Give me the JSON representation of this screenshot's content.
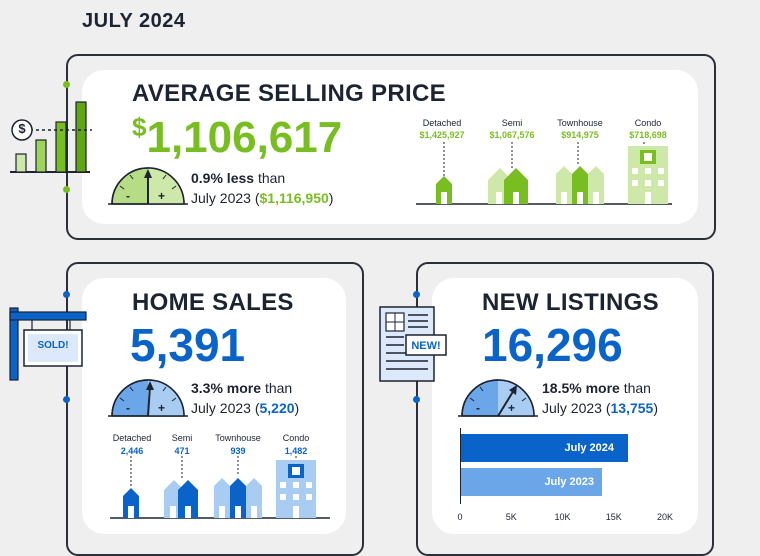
{
  "header": {
    "month": "JULY 2024"
  },
  "price": {
    "title": "AVERAGE SELLING PRICE",
    "currency": "$",
    "amount": "1,106,617",
    "change_pct": "0.9% less",
    "change_word": "than",
    "prev_label": "July 2023 (",
    "prev_currency": "$",
    "prev_value": "1,116,950",
    "prev_close": ")",
    "accent": "#78be20",
    "types": [
      {
        "label": "Detached",
        "value": "$1,425,927"
      },
      {
        "label": "Semi",
        "value": "$1,067,576"
      },
      {
        "label": "Townhouse",
        "value": "$914,975"
      },
      {
        "label": "Condo",
        "value": "$718,698"
      }
    ],
    "sign_symbol": "$"
  },
  "sales": {
    "title": "HOME SALES",
    "amount": "5,391",
    "change_pct": "3.3% more",
    "change_word": "than",
    "prev_label": "July 2023 (",
    "prev_value": "5,220",
    "prev_close": ")",
    "accent": "#0a63c9",
    "sign_text": "SOLD!",
    "types": [
      {
        "label": "Detached",
        "value": "2,446"
      },
      {
        "label": "Semi",
        "value": "471"
      },
      {
        "label": "Townhouse",
        "value": "939"
      },
      {
        "label": "Condo",
        "value": "1,482"
      }
    ]
  },
  "listings": {
    "title": "NEW LISTINGS",
    "amount": "16,296",
    "change_pct": "18.5% more",
    "change_word": "than",
    "prev_label": "July 2023 (",
    "prev_value": "13,755",
    "prev_close": ")",
    "accent": "#0a63c9",
    "badge_text": "NEW!"
  },
  "gauge": {
    "minus": "-",
    "plus": "+"
  },
  "chart_data": {
    "type": "bar",
    "orientation": "horizontal",
    "categories": [
      "July 2024",
      "July 2023"
    ],
    "values": [
      16296,
      13755
    ],
    "xlim": [
      0,
      20000
    ],
    "ticks": [
      "0",
      "5K",
      "10K",
      "15K",
      "20K"
    ],
    "colors": [
      "#0a63c9",
      "#6aa6e8"
    ]
  }
}
